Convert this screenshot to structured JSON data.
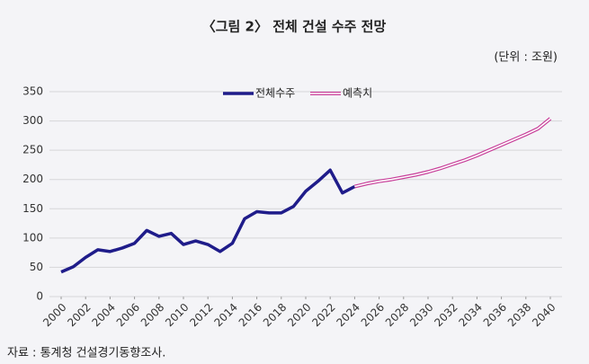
{
  "chart_data": {
    "type": "line",
    "title": "〈그림 2〉 전체 건설 수주 전망",
    "unit_label": "(단위 : 조원)",
    "source": "자료 : 통계청 건설경기동향조사.",
    "x": [
      2000,
      2001,
      2002,
      2003,
      2004,
      2005,
      2006,
      2007,
      2008,
      2009,
      2010,
      2011,
      2012,
      2013,
      2014,
      2015,
      2016,
      2017,
      2018,
      2019,
      2020,
      2021,
      2022,
      2023,
      2024,
      2025,
      2026,
      2027,
      2028,
      2029,
      2030,
      2031,
      2032,
      2033,
      2034,
      2035,
      2036,
      2037,
      2038,
      2039,
      2040
    ],
    "xlim": [
      2000,
      2040
    ],
    "xticks": [
      2000,
      2002,
      2004,
      2006,
      2008,
      2010,
      2012,
      2014,
      2016,
      2018,
      2020,
      2022,
      2024,
      2026,
      2028,
      2030,
      2032,
      2034,
      2036,
      2038,
      2040
    ],
    "ylim": [
      0,
      350
    ],
    "yticks": [
      0,
      50,
      100,
      150,
      200,
      250,
      300,
      350
    ],
    "grid": true,
    "legend": "top",
    "series": [
      {
        "name": "전체수주",
        "color": "#1f1c8a",
        "values": [
          42,
          51,
          67,
          80,
          77,
          83,
          91,
          113,
          103,
          108,
          89,
          95,
          89,
          77,
          91,
          133,
          145,
          143,
          143,
          154,
          180,
          197,
          216,
          177,
          188,
          null,
          null,
          null,
          null,
          null,
          null,
          null,
          null,
          null,
          null,
          null,
          null,
          null,
          null,
          null,
          null
        ]
      },
      {
        "name": "예측치",
        "color": "#c8409a",
        "values": [
          null,
          null,
          null,
          null,
          null,
          null,
          null,
          null,
          null,
          null,
          null,
          null,
          null,
          null,
          null,
          null,
          null,
          null,
          null,
          null,
          null,
          null,
          null,
          null,
          188,
          193,
          197,
          200,
          204,
          208,
          213,
          219,
          226,
          233,
          241,
          250,
          259,
          268,
          277,
          287,
          304
        ]
      }
    ]
  }
}
